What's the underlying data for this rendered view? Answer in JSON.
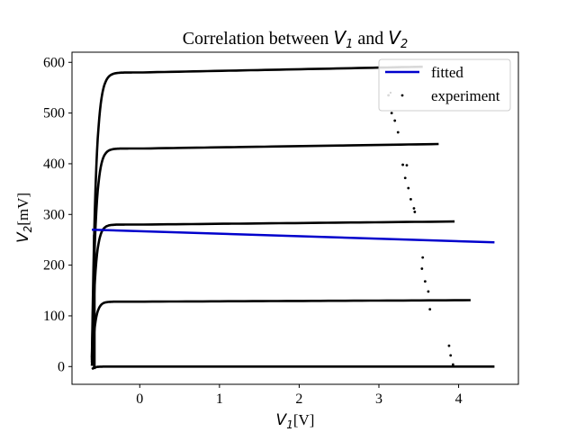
{
  "chart_data": {
    "type": "scatter",
    "title": {
      "prefix": "Correlation between ",
      "var1": "V",
      "sub1": "1",
      "middle": " and ",
      "var2": "V",
      "sub2": "2"
    },
    "xlabel": {
      "var": "V",
      "sub": "1",
      "unit": "[V]"
    },
    "ylabel": {
      "var": "V",
      "sub": "2",
      "unit": "[mV]"
    },
    "xlim": [
      -0.85,
      4.75
    ],
    "ylim": [
      -35,
      620
    ],
    "xticks": [
      0,
      1,
      2,
      3,
      4
    ],
    "yticks": [
      0,
      100,
      200,
      300,
      400,
      500,
      600
    ],
    "grid": false,
    "legend_position": "top-right",
    "colors": {
      "fitted": "#0000cc",
      "experiment": "#000000"
    },
    "series": [
      {
        "name": "fitted",
        "kind": "line",
        "x": [
          -0.6,
          4.45
        ],
        "y": [
          270,
          245
        ]
      },
      {
        "name": "experiment",
        "kind": "scatter",
        "curves": [
          {
            "plateau": 0,
            "x_end": 4.45
          },
          {
            "plateau": 128,
            "x_end": 4.15
          },
          {
            "plateau": 280,
            "x_end": 3.95
          },
          {
            "plateau": 430,
            "x_end": 3.75
          },
          {
            "plateau": 580,
            "x_end": 3.55
          }
        ],
        "stray_points": [
          {
            "x": 3.12,
            "y": 535
          },
          {
            "x": 3.16,
            "y": 500
          },
          {
            "x": 3.2,
            "y": 485
          },
          {
            "x": 3.24,
            "y": 462
          },
          {
            "x": 3.3,
            "y": 398
          },
          {
            "x": 3.35,
            "y": 397
          },
          {
            "x": 3.33,
            "y": 372
          },
          {
            "x": 3.37,
            "y": 352
          },
          {
            "x": 3.4,
            "y": 330
          },
          {
            "x": 3.44,
            "y": 312
          },
          {
            "x": 3.45,
            "y": 305
          },
          {
            "x": 3.55,
            "y": 215
          },
          {
            "x": 3.54,
            "y": 193
          },
          {
            "x": 3.58,
            "y": 168
          },
          {
            "x": 3.62,
            "y": 148
          },
          {
            "x": 3.64,
            "y": 113
          },
          {
            "x": 3.88,
            "y": 41
          },
          {
            "x": 3.9,
            "y": 22
          },
          {
            "x": 3.93,
            "y": 4
          }
        ]
      }
    ]
  }
}
